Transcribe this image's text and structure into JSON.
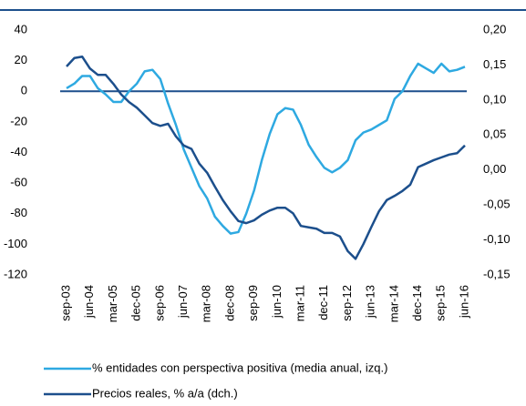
{
  "chart_data": {
    "type": "line",
    "categories": [
      "sep-03",
      null,
      null,
      "jun-04",
      null,
      null,
      "mar-05",
      null,
      null,
      "dec-05",
      null,
      null,
      "sep-06",
      null,
      null,
      "jun-07",
      null,
      null,
      "mar-08",
      null,
      null,
      "dec-08",
      null,
      null,
      "sep-09",
      null,
      null,
      "jun-10",
      null,
      null,
      "mar-11",
      null,
      null,
      "dec-11",
      null,
      null,
      "sep-12",
      null,
      null,
      "jun-13",
      null,
      null,
      "mar-14",
      null,
      null,
      "dec-14",
      null,
      null,
      "sep-15",
      null,
      null,
      "jun-16"
    ],
    "series": [
      {
        "name": "% entidades con perspectiva positiva (media anual, izq.)",
        "color": "#2ea9e1",
        "values": [
          2,
          5,
          10,
          10,
          2,
          -2,
          -7,
          -7,
          0,
          5,
          13,
          14,
          8,
          -8,
          -22,
          -38,
          -50,
          -62,
          -70,
          -82,
          -88,
          -93,
          -92,
          -80,
          -65,
          -45,
          -28,
          -15,
          -11,
          -12,
          -22,
          -35,
          -43,
          -50,
          -53,
          -50,
          -45,
          -32,
          -27,
          -25,
          -22,
          -19,
          -5,
          0,
          10,
          18,
          15,
          12,
          18,
          13,
          14,
          16
        ]
      },
      {
        "name": "Precios reales, % a/a (dch.)",
        "color": "#1c4f8c",
        "axis": "y2",
        "values": [
          0.148,
          0.16,
          0.162,
          0.145,
          0.136,
          0.136,
          0.123,
          0.108,
          0.097,
          0.089,
          0.078,
          0.067,
          0.063,
          0.066,
          0.048,
          0.035,
          0.03,
          0.009,
          -0.004,
          -0.024,
          -0.043,
          -0.059,
          -0.073,
          -0.076,
          -0.072,
          -0.064,
          -0.058,
          -0.054,
          -0.054,
          -0.062,
          -0.08,
          -0.082,
          -0.084,
          -0.09,
          -0.09,
          -0.095,
          -0.116,
          -0.127,
          -0.106,
          -0.082,
          -0.059,
          -0.043,
          -0.037,
          -0.03,
          -0.021,
          0.004,
          0.009,
          0.014,
          0.018,
          0.022,
          0.024,
          0.035
        ]
      }
    ],
    "ylim": [
      -120,
      40
    ],
    "yticks": [
      -120,
      -100,
      -80,
      -60,
      -40,
      -20,
      0,
      20,
      40
    ],
    "y2lim": [
      -0.15,
      0.2
    ],
    "y2ticks": [
      {
        "value": -0.15,
        "label": "-0,15"
      },
      {
        "value": -0.1,
        "label": "-0,10"
      },
      {
        "value": -0.05,
        "label": "-0,05"
      },
      {
        "value": 0,
        "label": "0,00"
      },
      {
        "value": 0.05,
        "label": "0,05"
      },
      {
        "value": 0.1,
        "label": "0,10"
      },
      {
        "value": 0.15,
        "label": "0,15"
      },
      {
        "value": 0.2,
        "label": "0,20"
      }
    ],
    "legend": "bottom"
  }
}
